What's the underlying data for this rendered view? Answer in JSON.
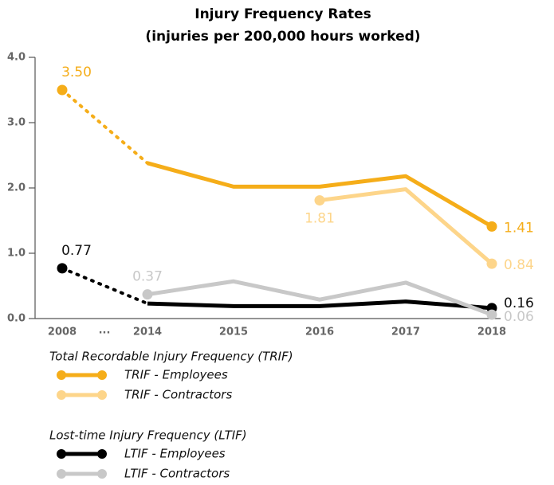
{
  "chart_data": {
    "type": "line",
    "title": "Injury Frequency Rates",
    "subtitle": "(injuries per 200,000 hours worked)",
    "categories": [
      "2008",
      "2014",
      "2015",
      "2016",
      "2017",
      "2018"
    ],
    "gap_label": "...",
    "ylim": [
      0,
      4
    ],
    "yticks": [
      {
        "value": 0,
        "label": "0.0"
      },
      {
        "value": 1,
        "label": "1.0"
      },
      {
        "value": 2,
        "label": "2.0"
      },
      {
        "value": 3,
        "label": "3.0"
      },
      {
        "value": 4,
        "label": "4.0"
      }
    ],
    "legend_groups": [
      "Total Recordable Injury Frequency (TRIF)",
      "Lost-time Injury Frequency (LTIF)"
    ],
    "series": [
      {
        "name": "TRIF - Employees",
        "color": "#f5ad19",
        "values": [
          3.5,
          2.38,
          2.02,
          2.02,
          2.18,
          1.41
        ],
        "value_labels": [
          "3.50",
          null,
          null,
          null,
          null,
          "1.41"
        ]
      },
      {
        "name": "TRIF - Contractors",
        "color": "#fdd58a",
        "values": [
          null,
          null,
          null,
          1.81,
          1.98,
          0.84
        ],
        "value_labels": [
          null,
          null,
          null,
          "1.81",
          null,
          "0.84"
        ]
      },
      {
        "name": "LTIF - Employees",
        "color": "#000000",
        "values": [
          0.77,
          0.23,
          0.19,
          0.19,
          0.26,
          0.16
        ],
        "value_labels": [
          "0.77",
          null,
          null,
          null,
          null,
          "0.16"
        ]
      },
      {
        "name": "LTIF - Contractors",
        "color": "#c8c8c8",
        "values": [
          null,
          0.37,
          0.57,
          0.29,
          0.55,
          0.06
        ],
        "value_labels": [
          null,
          "0.37",
          null,
          null,
          null,
          "0.06"
        ]
      }
    ]
  }
}
